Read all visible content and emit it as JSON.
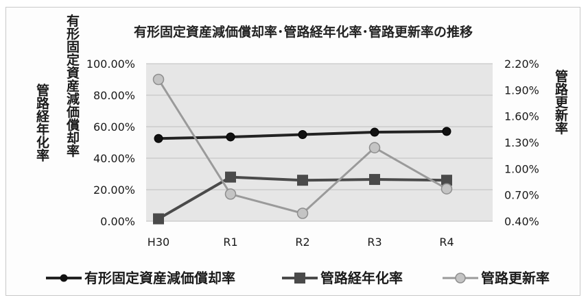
{
  "chart_data": {
    "type": "line",
    "title": "有形固定資産減価償却率･管路経年化率･管路更新率の推移",
    "categories": [
      "H30",
      "R1",
      "R2",
      "R3",
      "R4"
    ],
    "y_left": {
      "ticks": [
        "0.00%",
        "20.00%",
        "40.00%",
        "60.00%",
        "80.00%",
        "100.00%"
      ],
      "range": [
        0,
        100
      ],
      "labels": [
        "有形固定資産減価償却率",
        "管路経年化率"
      ]
    },
    "y_right": {
      "ticks": [
        "0.40%",
        "0.70%",
        "1.00%",
        "1.30%",
        "1.60%",
        "1.90%",
        "2.20%"
      ],
      "range": [
        0.4,
        2.2
      ],
      "label": "管路更新率"
    },
    "grid": true,
    "legend_position": "bottom",
    "series": [
      {
        "name": "有形固定資産減価償却率",
        "axis": "left",
        "marker": "circle",
        "color": "#222222",
        "values": [
          52.5,
          53.5,
          55.0,
          56.5,
          57.0
        ]
      },
      {
        "name": "管路経年化率",
        "axis": "left",
        "marker": "square",
        "color": "#4a4a4a",
        "values": [
          1.5,
          28.0,
          26.0,
          26.5,
          26.0
        ]
      },
      {
        "name": "管路更新率",
        "axis": "right",
        "marker": "circle",
        "color": "#9a9a9a",
        "values": [
          2.02,
          0.71,
          0.49,
          1.24,
          0.77
        ]
      }
    ]
  }
}
